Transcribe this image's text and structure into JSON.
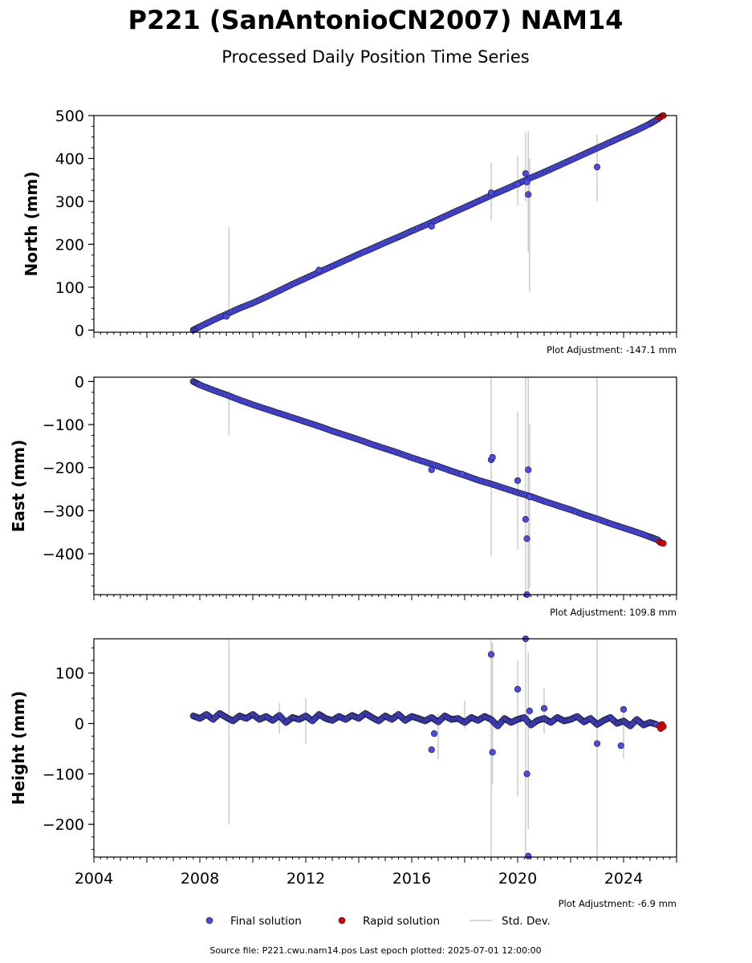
{
  "title": "P221 (SanAntonioCN2007) NAM14",
  "subtitle": "Processed Daily Position Time Series",
  "source_note": "Source file: P221.cwu.nam14.pos  Last epoch plotted: 2025-07-01 12:00:00",
  "legend": {
    "final": "Final solution",
    "rapid": "Rapid solution",
    "stddev": "Std. Dev."
  },
  "colors": {
    "final": "#4a4ae8",
    "final_edge": "#1a1a3a",
    "rapid": "#e00000",
    "stddev": "#cccccc"
  },
  "chart_data": [
    {
      "type": "scatter",
      "ylabel": "North (mm)",
      "plot_adjustment": "Plot Adjustment: -147.1 mm",
      "xlim": [
        2004,
        2026
      ],
      "ylim": [
        -5,
        500
      ],
      "yticks": [
        0,
        100,
        200,
        300,
        400,
        500
      ],
      "show_xtick_labels": false,
      "series": [
        {
          "x": [
            2007.75,
            2008.0,
            2008.5,
            2009.0,
            2009.5,
            2010.0,
            2010.5,
            2011.0,
            2011.5,
            2012.0,
            2012.5,
            2013.0,
            2013.5,
            2014.0,
            2014.5,
            2015.0,
            2015.5,
            2016.0,
            2016.5,
            2017.0,
            2017.5,
            2018.0,
            2018.5,
            2019.0,
            2019.5,
            2020.0,
            2020.5,
            2021.0,
            2021.5,
            2022.0,
            2022.5,
            2023.0,
            2023.5,
            2024.0,
            2024.5,
            2025.0,
            2025.3
          ],
          "y": [
            0,
            8,
            23,
            37,
            51,
            63,
            77,
            92,
            107,
            121,
            135,
            149,
            163,
            177,
            190,
            204,
            217,
            231,
            244,
            258,
            272,
            286,
            300,
            314,
            327,
            341,
            355,
            368,
            382,
            396,
            410,
            424,
            438,
            452,
            466,
            481,
            492
          ]
        },
        {
          "x": [
            2009.0,
            2012.5,
            2016.75,
            2019.0,
            2020.0,
            2020.3,
            2020.35,
            2020.4,
            2023.0
          ],
          "y": [
            32,
            140,
            242,
            320,
            340,
            365,
            345,
            316,
            380
          ]
        },
        {
          "x": [
            2025.35,
            2025.4,
            2025.45,
            2025.5
          ],
          "y": [
            495,
            497,
            499,
            500
          ]
        }
      ],
      "stddev_bars": [
        {
          "x": 2009.1,
          "lo": 40,
          "hi": 240
        },
        {
          "x": 2019.0,
          "lo": 255,
          "hi": 390
        },
        {
          "x": 2020.0,
          "lo": 290,
          "hi": 405
        },
        {
          "x": 2020.3,
          "lo": 300,
          "hi": 460
        },
        {
          "x": 2020.4,
          "lo": 180,
          "hi": 465
        },
        {
          "x": 2020.45,
          "lo": 90,
          "hi": 400
        },
        {
          "x": 2023.0,
          "lo": 300,
          "hi": 455
        }
      ]
    },
    {
      "type": "scatter",
      "ylabel": "East (mm)",
      "plot_adjustment": "Plot Adjustment: 109.8 mm",
      "xlim": [
        2004,
        2026
      ],
      "ylim": [
        -495,
        10
      ],
      "yticks": [
        0,
        -100,
        -200,
        -300,
        -400
      ],
      "show_xtick_labels": false,
      "series": [
        {
          "x": [
            2007.75,
            2008.0,
            2008.5,
            2009.0,
            2009.5,
            2010.0,
            2010.5,
            2011.0,
            2011.5,
            2012.0,
            2012.5,
            2013.0,
            2013.5,
            2014.0,
            2014.5,
            2015.0,
            2015.5,
            2016.0,
            2016.5,
            2017.0,
            2017.5,
            2018.0,
            2018.5,
            2019.0,
            2019.5,
            2020.0,
            2020.5,
            2021.0,
            2021.5,
            2022.0,
            2022.5,
            2023.0,
            2023.5,
            2024.0,
            2024.5,
            2025.0,
            2025.3
          ],
          "y": [
            0,
            -8,
            -20,
            -31,
            -43,
            -54,
            -64,
            -74,
            -84,
            -94,
            -104,
            -115,
            -125,
            -135,
            -146,
            -156,
            -166,
            -177,
            -187,
            -197,
            -208,
            -218,
            -229,
            -238,
            -248,
            -258,
            -267,
            -278,
            -288,
            -298,
            -309,
            -319,
            -330,
            -340,
            -350,
            -361,
            -368
          ]
        },
        {
          "x": [
            2016.75,
            2017.9,
            2019.0,
            2019.05,
            2020.0,
            2020.3,
            2020.35,
            2020.4,
            2020.45,
            2020.35
          ],
          "y": [
            -205,
            -215,
            -182,
            -176,
            -230,
            -320,
            -365,
            -205,
            -268,
            -495
          ]
        },
        {
          "x": [
            2025.35,
            2025.4,
            2025.45,
            2025.5
          ],
          "y": [
            -372,
            -374,
            -375,
            -376
          ]
        }
      ],
      "stddev_bars": [
        {
          "x": 2009.1,
          "lo": -125,
          "hi": -20
        },
        {
          "x": 2019.0,
          "lo": -405,
          "hi": 10
        },
        {
          "x": 2020.0,
          "lo": -390,
          "hi": -70
        },
        {
          "x": 2020.3,
          "lo": -495,
          "hi": 10
        },
        {
          "x": 2020.4,
          "lo": -495,
          "hi": 10
        },
        {
          "x": 2020.45,
          "lo": -480,
          "hi": -100
        },
        {
          "x": 2023.0,
          "lo": -495,
          "hi": 10
        }
      ]
    },
    {
      "type": "scatter",
      "ylabel": "Height (mm)",
      "plot_adjustment": "Plot Adjustment: -6.9 mm",
      "xlim": [
        2004,
        2026
      ],
      "ylim": [
        -265,
        168
      ],
      "yticks": [
        100,
        0,
        -100,
        -200
      ],
      "xticks": [
        2004,
        2008,
        2012,
        2016,
        2020,
        2024
      ],
      "show_xtick_labels": true,
      "series": [
        {
          "x": [
            2007.75,
            2008.0,
            2008.25,
            2008.5,
            2008.75,
            2009.0,
            2009.25,
            2009.5,
            2009.75,
            2010.0,
            2010.25,
            2010.5,
            2010.75,
            2011.0,
            2011.25,
            2011.5,
            2011.75,
            2012.0,
            2012.25,
            2012.5,
            2012.75,
            2013.0,
            2013.25,
            2013.5,
            2013.75,
            2014.0,
            2014.25,
            2014.5,
            2014.75,
            2015.0,
            2015.25,
            2015.5,
            2015.75,
            2016.0,
            2016.25,
            2016.5,
            2016.75,
            2017.0,
            2017.25,
            2017.5,
            2017.75,
            2018.0,
            2018.25,
            2018.5,
            2018.75,
            2019.0,
            2019.25,
            2019.5,
            2019.75,
            2020.0,
            2020.25,
            2020.5,
            2020.75,
            2021.0,
            2021.25,
            2021.5,
            2021.75,
            2022.0,
            2022.25,
            2022.5,
            2022.75,
            2023.0,
            2023.25,
            2023.5,
            2023.75,
            2024.0,
            2024.25,
            2024.5,
            2024.75,
            2025.0,
            2025.25
          ],
          "y": [
            15,
            10,
            18,
            8,
            20,
            12,
            5,
            15,
            10,
            18,
            8,
            14,
            6,
            16,
            2,
            12,
            8,
            15,
            5,
            18,
            10,
            6,
            14,
            8,
            16,
            10,
            20,
            12,
            5,
            15,
            8,
            18,
            6,
            14,
            10,
            5,
            12,
            3,
            15,
            8,
            10,
            2,
            12,
            6,
            14,
            8,
            -5,
            10,
            2,
            8,
            12,
            -3,
            6,
            10,
            2,
            12,
            5,
            8,
            14,
            3,
            10,
            -2,
            6,
            12,
            0,
            5,
            -5,
            8,
            -3,
            2,
            -2
          ]
        },
        {
          "x": [
            2016.75,
            2016.85,
            2019.0,
            2019.05,
            2020.0,
            2020.3,
            2020.35,
            2020.4,
            2020.45,
            2021.0,
            2023.0,
            2023.9,
            2024.0
          ],
          "y": [
            -52,
            -20,
            137,
            -57,
            68,
            168,
            -100,
            -263,
            25,
            30,
            -40,
            -44,
            28
          ]
        },
        {
          "x": [
            2025.35,
            2025.4,
            2025.45,
            2025.5
          ],
          "y": [
            -5,
            -10,
            -2,
            -6
          ]
        }
      ],
      "stddev_bars": [
        {
          "x": 2009.1,
          "lo": -200,
          "hi": 168
        },
        {
          "x": 2011.0,
          "lo": -20,
          "hi": 40
        },
        {
          "x": 2012.0,
          "lo": -40,
          "hi": 50
        },
        {
          "x": 2017.0,
          "lo": -70,
          "hi": 20
        },
        {
          "x": 2018.0,
          "lo": -10,
          "hi": 45
        },
        {
          "x": 2019.0,
          "lo": -265,
          "hi": 168
        },
        {
          "x": 2019.05,
          "lo": -120,
          "hi": 160
        },
        {
          "x": 2020.0,
          "lo": -145,
          "hi": 125
        },
        {
          "x": 2020.3,
          "lo": -265,
          "hi": 168
        },
        {
          "x": 2020.4,
          "lo": -210,
          "hi": 140
        },
        {
          "x": 2021.0,
          "lo": -20,
          "hi": 70
        },
        {
          "x": 2023.0,
          "lo": -265,
          "hi": 168
        },
        {
          "x": 2024.0,
          "lo": -70,
          "hi": 30
        }
      ]
    }
  ]
}
